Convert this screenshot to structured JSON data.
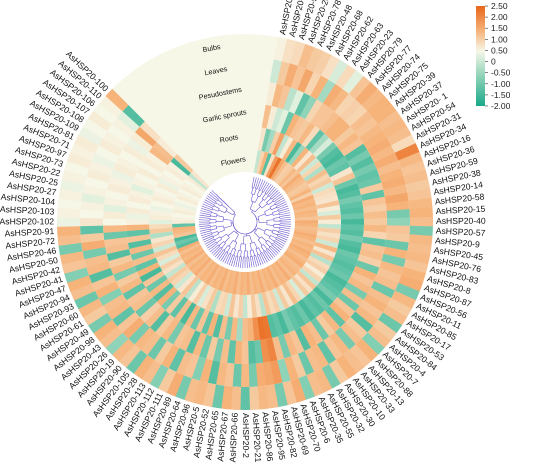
{
  "chart_data": {
    "type": "heatmap",
    "title": "",
    "layout_kind": "circular",
    "tracks": [
      "Flowers",
      "Roots",
      "Garlic sprouts",
      "Pesudostems",
      "Leaves",
      "Bulbs"
    ],
    "color_scale": {
      "min": -2.0,
      "max": 2.5,
      "ticks": [
        2.5,
        2.0,
        1.5,
        1.0,
        0.5,
        0.0,
        -0.5,
        -1.0,
        -1.5,
        -2.0
      ],
      "tick_labels": [
        "2.50",
        "2.00",
        "1.50",
        "1.00",
        "0.50",
        "0",
        "-0.50",
        "-1.00",
        "-1.50",
        "-2.00"
      ],
      "colors": [
        "#1aa88a",
        "#8fd3b8",
        "#f7f7e8",
        "#f6b37a",
        "#e8661a"
      ]
    },
    "genes": [
      {
        "name": "AsHSP20-51",
        "values": [
          -0.5,
          0.3,
          1.0,
          0.2,
          -0.4,
          0.1
        ]
      },
      {
        "name": "AsHSP20-80",
        "values": [
          0.6,
          -1.2,
          0.2,
          1.1,
          0.8,
          0.4
        ]
      },
      {
        "name": "AsHSP20-99",
        "values": [
          1.2,
          -0.8,
          -0.4,
          0.9,
          1.3,
          0.5
        ]
      },
      {
        "name": "AsHSP20-24",
        "values": [
          -1.5,
          0.7,
          -0.2,
          -0.6,
          0.9,
          1.0
        ]
      },
      {
        "name": "AsHSP20-78",
        "values": [
          0.4,
          1.5,
          -1.3,
          -0.2,
          1.4,
          0.8
        ]
      },
      {
        "name": "AsHSP20-48",
        "values": [
          1.6,
          -0.5,
          1.2,
          -1.4,
          0.6,
          0.7
        ]
      },
      {
        "name": "AsHSP20-68",
        "values": [
          2.3,
          0.2,
          0.9,
          -1.0,
          1.2,
          0.4
        ]
      },
      {
        "name": "AsHSP20-62",
        "values": [
          1.4,
          1.1,
          0.8,
          0.6,
          -0.8,
          -0.3
        ]
      },
      {
        "name": "AsHSP20-63",
        "values": [
          1.0,
          -1.6,
          1.1,
          0.9,
          1.3,
          0.5
        ]
      },
      {
        "name": "AsHSP20-23",
        "values": [
          0.7,
          -0.9,
          0.5,
          0.9,
          1.1,
          -0.2
        ]
      },
      {
        "name": "AsHSP20-79",
        "values": [
          0.8,
          1.2,
          -1.4,
          1.0,
          0.6,
          0.9
        ]
      },
      {
        "name": "AsHSP20-77",
        "values": [
          1.1,
          0.3,
          -0.8,
          1.2,
          0.7,
          1.3
        ]
      },
      {
        "name": "AsHSP20-74",
        "values": [
          0.9,
          1.0,
          -0.3,
          1.2,
          0.6,
          1.1
        ]
      },
      {
        "name": "AsHSP20-75",
        "values": [
          1.3,
          -0.4,
          -1.2,
          0.8,
          1.0,
          1.2
        ]
      },
      {
        "name": "AsHSP20-39",
        "values": [
          1.1,
          0.6,
          -1.5,
          1.1,
          0.9,
          1.2
        ]
      },
      {
        "name": "AsHSP20-37",
        "values": [
          1.0,
          -0.7,
          -1.6,
          0.9,
          1.1,
          1.0
        ]
      },
      {
        "name": "AsHSP20- 1",
        "values": [
          0.8,
          1.0,
          -1.3,
          -1.5,
          1.2,
          1.1
        ]
      },
      {
        "name": "AsHSP20-54",
        "values": [
          0.9,
          0.6,
          -1.4,
          -1.2,
          1.3,
          1.0
        ]
      },
      {
        "name": "AsHSP20-31",
        "values": [
          1.2,
          0.8,
          0.3,
          -1.5,
          1.1,
          0.5
        ]
      },
      {
        "name": "AsHSP20-34",
        "values": [
          0.7,
          -0.4,
          0.9,
          -1.2,
          1.3,
          2.0
        ]
      },
      {
        "name": "AsHSP20-16",
        "values": [
          1.3,
          0.5,
          -1.3,
          -1.4,
          1.0,
          1.1
        ]
      },
      {
        "name": "AsHSP20-36",
        "values": [
          1.1,
          0.4,
          -1.6,
          -1.3,
          1.2,
          0.9
        ]
      },
      {
        "name": "AsHSP20-59",
        "values": [
          1.2,
          0.3,
          -1.5,
          0.8,
          1.3,
          1.0
        ]
      },
      {
        "name": "AsHSP20-38",
        "values": [
          1.0,
          0.9,
          -1.2,
          -1.4,
          1.1,
          0.8
        ]
      },
      {
        "name": "AsHSP20-14",
        "values": [
          1.2,
          0.2,
          -1.4,
          0.9,
          1.4,
          0.9
        ]
      },
      {
        "name": "AsHSP20-58",
        "values": [
          1.1,
          -0.3,
          -1.5,
          0.7,
          1.2,
          1.1
        ]
      },
      {
        "name": "AsHSP20-15",
        "values": [
          0.9,
          0.8,
          -1.3,
          1.0,
          -1.2,
          1.2
        ]
      },
      {
        "name": "AsHSP20-40",
        "values": [
          1.3,
          0.2,
          -1.6,
          0.8,
          -1.0,
          1.0
        ]
      },
      {
        "name": "AsHSP20-57",
        "values": [
          1.2,
          -0.5,
          -1.4,
          1.1,
          0.9,
          -1.2
        ]
      },
      {
        "name": "AsHSP20-9",
        "values": [
          1.0,
          0.7,
          -1.5,
          0.6,
          0.8,
          1.1
        ]
      },
      {
        "name": "AsHSP20-45",
        "values": [
          1.1,
          0.4,
          -1.2,
          -1.4,
          -1.3,
          1.0
        ]
      },
      {
        "name": "AsHSP20-76",
        "values": [
          1.3,
          0.6,
          -1.5,
          0.9,
          1.2,
          1.1
        ]
      },
      {
        "name": "AsHSP20-83",
        "values": [
          1.2,
          -0.4,
          -1.6,
          1.0,
          -1.2,
          0.9
        ]
      },
      {
        "name": "AsHSP20-8",
        "values": [
          1.0,
          1.1,
          -1.3,
          0.7,
          1.1,
          1.2
        ]
      },
      {
        "name": "AsHSP20-87",
        "values": [
          1.2,
          0.3,
          -1.4,
          -1.3,
          0.9,
          1.3
        ]
      },
      {
        "name": "AsHSP20-56",
        "values": [
          1.1,
          0.9,
          -1.5,
          1.2,
          1.0,
          -1.2
        ]
      },
      {
        "name": "AsHSP20-11",
        "values": [
          1.3,
          -0.6,
          -1.4,
          0.9,
          -1.3,
          1.1
        ]
      },
      {
        "name": "AsHSP20-85",
        "values": [
          1.2,
          0.5,
          -1.3,
          1.1,
          1.0,
          0.8
        ]
      },
      {
        "name": "AsHSP20-17",
        "values": [
          1.0,
          0.7,
          -1.6,
          -1.2,
          1.2,
          1.0
        ]
      },
      {
        "name": "AsHSP20-53",
        "values": [
          1.2,
          0.2,
          -1.5,
          1.0,
          0.9,
          -1.3
        ]
      },
      {
        "name": "AsHSP20-84",
        "values": [
          1.3,
          0.6,
          -1.4,
          -1.3,
          1.1,
          0.8
        ]
      },
      {
        "name": "AsHSP20-4",
        "values": [
          1.0,
          -0.5,
          -1.2,
          0.9,
          -1.5,
          1.0
        ]
      },
      {
        "name": "AsHSP20-7",
        "values": [
          1.1,
          0.9,
          -1.6,
          1.2,
          0.8,
          -1.1
        ]
      },
      {
        "name": "AsHSP20-88",
        "values": [
          1.2,
          0.4,
          -1.3,
          -1.4,
          1.0,
          1.2
        ]
      },
      {
        "name": "AsHSP20-13",
        "values": [
          1.0,
          0.8,
          -1.5,
          1.1,
          -1.2,
          0.9
        ]
      },
      {
        "name": "AsHSP20-33",
        "values": [
          1.3,
          -0.3,
          -1.4,
          0.8,
          1.1,
          1.0
        ]
      },
      {
        "name": "AsHSP20-10",
        "values": [
          1.1,
          0.6,
          -1.6,
          -1.3,
          0.9,
          1.2
        ]
      },
      {
        "name": "AsHSP20-30",
        "values": [
          1.2,
          1.0,
          -1.3,
          1.0,
          -1.4,
          0.8
        ]
      },
      {
        "name": "AsHSP20-32",
        "values": [
          1.0,
          0.3,
          -1.5,
          1.2,
          1.1,
          -1.2
        ]
      },
      {
        "name": "AsHSP20-55",
        "values": [
          1.3,
          0.8,
          -1.4,
          -1.5,
          1.0,
          1.1
        ]
      },
      {
        "name": "AsHSP20-35",
        "values": [
          1.1,
          -0.4,
          -1.2,
          0.9,
          -1.3,
          1.0
        ]
      },
      {
        "name": "AsHSP20-6",
        "values": [
          1.2,
          0.7,
          -1.6,
          1.1,
          0.8,
          -1.1
        ]
      },
      {
        "name": "AsHSP20-70",
        "values": [
          1.0,
          0.5,
          -1.4,
          -1.2,
          1.2,
          1.3
        ]
      },
      {
        "name": "AsHSP20-69",
        "values": [
          1.3,
          0.9,
          -1.5,
          1.0,
          -1.0,
          0.9
        ]
      },
      {
        "name": "AsHSP20-82",
        "values": [
          1.1,
          -0.6,
          2.2,
          2.0,
          1.6,
          -1.2
        ]
      },
      {
        "name": "AsHSP20-95",
        "values": [
          1.2,
          0.4,
          2.3,
          1.8,
          1.4,
          1.0
        ]
      },
      {
        "name": "AsHSP20-86",
        "values": [
          1.0,
          0.8,
          1.8,
          -1.3,
          1.3,
          1.1
        ]
      },
      {
        "name": "AsHSP20-21",
        "values": [
          1.3,
          0.2,
          1.2,
          -1.5,
          -1.2,
          0.8
        ]
      },
      {
        "name": "AsHSP20-2",
        "values": [
          1.1,
          -0.5,
          1.0,
          0.9,
          1.1,
          -1.4
        ]
      },
      {
        "name": "AsHSP20-66",
        "values": [
          1.2,
          0.7,
          -0.8,
          1.2,
          -1.3,
          1.0
        ]
      },
      {
        "name": "AsHSP20-67",
        "values": [
          1.0,
          0.3,
          1.1,
          -1.4,
          0.9,
          1.2
        ]
      },
      {
        "name": "AsHSP20-65",
        "values": [
          1.3,
          0.9,
          -1.2,
          1.0,
          1.1,
          -1.3
        ]
      },
      {
        "name": "AsHSP20-52",
        "values": [
          1.1,
          -0.4,
          1.0,
          -1.2,
          -1.5,
          0.9
        ]
      },
      {
        "name": "AsHSP20-5",
        "values": [
          1.2,
          0.6,
          -1.5,
          0.8,
          1.2,
          1.1
        ]
      },
      {
        "name": "AsHSP20-96",
        "values": [
          1.0,
          0.5,
          1.2,
          -1.3,
          -1.1,
          1.0
        ]
      },
      {
        "name": "AsHSP20-64",
        "values": [
          1.3,
          -0.7,
          -1.4,
          1.1,
          0.9,
          -1.2
        ]
      },
      {
        "name": "AsHSP20-89",
        "values": [
          1.1,
          0.8,
          0.9,
          -1.5,
          1.0,
          1.3
        ]
      },
      {
        "name": "AsHSP20-111",
        "values": [
          1.2,
          0.4,
          -1.3,
          1.0,
          -1.4,
          0.8
        ]
      },
      {
        "name": "AsHSP20-112",
        "values": [
          1.0,
          -0.3,
          1.1,
          0.9,
          1.2,
          -1.1
        ]
      },
      {
        "name": "AsHSP20-113",
        "values": [
          1.3,
          0.7,
          -1.6,
          -1.2,
          0.8,
          1.0
        ]
      },
      {
        "name": "AsHSP20-28",
        "values": [
          1.1,
          0.2,
          1.0,
          1.1,
          -1.3,
          1.2
        ]
      },
      {
        "name": "AsHSP20-105",
        "values": [
          1.2,
          -0.6,
          -1.4,
          0.8,
          1.0,
          -1.3
        ]
      },
      {
        "name": "AsHSP20-90",
        "values": [
          1.0,
          0.9,
          0.8,
          -1.5,
          1.1,
          0.9
        ]
      },
      {
        "name": "AsHSP20-19",
        "values": [
          1.3,
          0.3,
          -1.2,
          1.0,
          -1.2,
          1.1
        ]
      },
      {
        "name": "AsHSP20-26",
        "values": [
          1.1,
          -0.4,
          1.2,
          0.7,
          1.3,
          -1.0
        ]
      },
      {
        "name": "AsHSP20-43",
        "values": [
          1.2,
          0.6,
          -1.5,
          -1.3,
          0.9,
          1.0
        ]
      },
      {
        "name": "AsHSP20-98",
        "values": [
          1.0,
          0.8,
          1.1,
          1.0,
          -1.4,
          1.2
        ]
      },
      {
        "name": "AsHSP20-49",
        "values": [
          1.3,
          -0.5,
          -1.3,
          0.9,
          1.1,
          -1.2
        ]
      },
      {
        "name": "AsHSP20-61",
        "values": [
          1.1,
          0.4,
          0.9,
          -1.4,
          1.0,
          0.8
        ]
      },
      {
        "name": "AsHSP20-60",
        "values": [
          1.2,
          0.7,
          -1.6,
          1.1,
          -1.1,
          1.1
        ]
      },
      {
        "name": "AsHSP20-93",
        "values": [
          1.0,
          -0.3,
          1.2,
          0.8,
          1.2,
          -1.3
        ]
      },
      {
        "name": "AsHSP20-94",
        "values": [
          1.3,
          0.5,
          -1.4,
          -1.2,
          0.9,
          1.0
        ]
      },
      {
        "name": "AsHSP20-47",
        "values": [
          -1.5,
          0.9,
          1.0,
          1.1,
          -1.5,
          1.2
        ]
      },
      {
        "name": "AsHSP20-41",
        "values": [
          -1.3,
          -0.4,
          -1.3,
          0.8,
          1.1,
          -1.1
        ]
      },
      {
        "name": "AsHSP20-42",
        "values": [
          -1.6,
          0.6,
          1.1,
          -1.5,
          1.0,
          0.9
        ]
      },
      {
        "name": "AsHSP20-50",
        "values": [
          0.9,
          0.3,
          -1.5,
          1.0,
          -1.2,
          1.1
        ]
      },
      {
        "name": "AsHSP20-46",
        "values": [
          1.1,
          -0.7,
          0.9,
          0.9,
          1.3,
          -1.2
        ]
      },
      {
        "name": "AsHSP20-72",
        "values": [
          1.2,
          0.8,
          -1.4,
          -1.3,
          0.8,
          1.0
        ]
      },
      {
        "name": "AsHSP20-91",
        "values": [
          -1.4,
          0.5,
          1.2,
          1.1,
          -1.4,
          1.2
        ]
      },
      {
        "name": "AsHSP20-102",
        "values": [
          0.2,
          -0.2,
          0.1,
          0.0,
          0.3,
          -0.1
        ]
      },
      {
        "name": "AsHSP20-103",
        "values": [
          0.1,
          0.2,
          -0.1,
          0.2,
          0.0,
          0.1
        ]
      },
      {
        "name": "AsHSP20-104",
        "values": [
          0.0,
          0.1,
          0.2,
          -0.2,
          0.1,
          0.0
        ]
      },
      {
        "name": "AsHSP20-27",
        "values": [
          0.2,
          -0.1,
          0.0,
          0.1,
          -0.2,
          0.1
        ]
      },
      {
        "name": "AsHSP20-25",
        "values": [
          0.1,
          0.0,
          0.2,
          0.0,
          0.1,
          -0.1
        ]
      },
      {
        "name": "AsHSP20-22",
        "values": [
          -0.1,
          0.2,
          0.1,
          0.2,
          0.0,
          0.1
        ]
      },
      {
        "name": "AsHSP20-73",
        "values": [
          0.0,
          0.1,
          -0.2,
          0.1,
          0.2,
          0.0
        ]
      },
      {
        "name": "AsHSP20-97",
        "values": [
          0.2,
          0.0,
          0.1,
          -0.1,
          0.1,
          0.2
        ]
      },
      {
        "name": "AsHSP20-71",
        "values": [
          0.1,
          0.2,
          0.0,
          0.2,
          -0.1,
          0.1
        ]
      },
      {
        "name": "AsHSP20-81",
        "values": [
          0.0,
          -0.1,
          0.2,
          0.1,
          0.0,
          0.2
        ]
      },
      {
        "name": "AsHSP20-109",
        "values": [
          0.2,
          0.1,
          0.0,
          0.0,
          0.2,
          -0.1
        ]
      },
      {
        "name": "AsHSP20-108",
        "values": [
          0.1,
          0.0,
          0.2,
          0.2,
          0.1,
          0.0
        ]
      },
      {
        "name": "AsHSP20-107",
        "values": [
          0.0,
          0.2,
          0.1,
          -0.1,
          0.0,
          0.2
        ]
      },
      {
        "name": "AsHSP20-106",
        "values": [
          0.2,
          0.1,
          1.1,
          0.2,
          0.1,
          0.0
        ]
      },
      {
        "name": "AsHSP20-110",
        "values": [
          -0.5,
          -1.6,
          1.0,
          1.4,
          -0.2,
          0.1
        ]
      },
      {
        "name": "AsHSP20-100",
        "values": [
          0.3,
          0.8,
          0.2,
          0.4,
          -1.5,
          1.2
        ]
      }
    ]
  }
}
